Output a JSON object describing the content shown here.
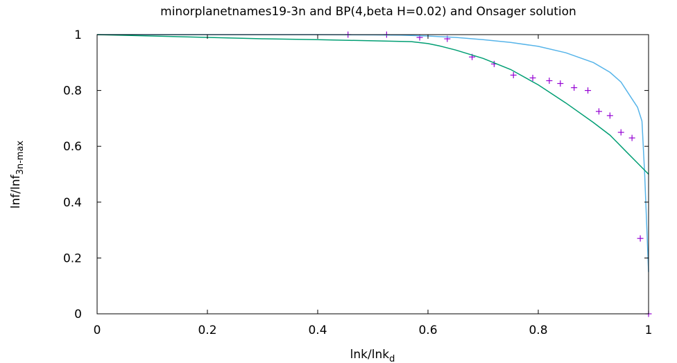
{
  "chart_data": {
    "type": "line",
    "title": "minorplanetnames19-3n and BP(4,beta H=0.02) and Onsager solution",
    "xlabel": "lnk/lnk",
    "xlabel_sub": "d",
    "ylabel": "lnf/lnf",
    "ylabel_sub": "3n-max",
    "xlim": [
      0,
      1
    ],
    "ylim": [
      0,
      1
    ],
    "xticks": [
      0,
      0.2,
      0.4,
      0.6,
      0.8,
      1
    ],
    "xtick_labels": [
      "0",
      "0.2",
      "0.4",
      "0.6",
      "0.8",
      "1"
    ],
    "yticks": [
      0,
      0.2,
      0.4,
      0.6,
      0.8,
      1
    ],
    "ytick_labels": [
      "0",
      "0.2",
      "0.4",
      "0.6",
      "0.8",
      "1"
    ],
    "grid": false,
    "series": [
      {
        "style": "points",
        "marker": "plus",
        "color": "#9400d3",
        "x": [
          0.455,
          0.525,
          0.585,
          0.635,
          0.68,
          0.72,
          0.755,
          0.79,
          0.82,
          0.84,
          0.865,
          0.89,
          0.91,
          0.93,
          0.95,
          0.97,
          0.985,
          1.0
        ],
        "y": [
          1.0,
          1.0,
          0.99,
          0.985,
          0.92,
          0.895,
          0.855,
          0.845,
          0.835,
          0.825,
          0.81,
          0.8,
          0.725,
          0.71,
          0.65,
          0.63,
          0.27,
          0.0
        ]
      },
      {
        "style": "line",
        "color": "#56b4e9",
        "x": [
          0,
          0.1,
          0.2,
          0.3,
          0.4,
          0.5,
          0.55,
          0.6,
          0.65,
          0.7,
          0.75,
          0.8,
          0.85,
          0.9,
          0.93,
          0.95,
          0.97,
          0.98,
          0.988,
          0.993,
          1.0
        ],
        "y": [
          1.0,
          1.0,
          1.0,
          1.0,
          1.0,
          0.999,
          0.998,
          0.995,
          0.99,
          0.982,
          0.972,
          0.958,
          0.935,
          0.9,
          0.865,
          0.83,
          0.77,
          0.74,
          0.69,
          0.5,
          0.15
        ]
      },
      {
        "style": "line",
        "color": "#009e73",
        "x": [
          0,
          0.1,
          0.2,
          0.3,
          0.4,
          0.5,
          0.57,
          0.6,
          0.62,
          0.65,
          0.7,
          0.75,
          0.8,
          0.85,
          0.9,
          0.93,
          0.94,
          0.96,
          0.98,
          1.0
        ],
        "y": [
          1.0,
          0.995,
          0.99,
          0.985,
          0.982,
          0.978,
          0.975,
          0.968,
          0.96,
          0.945,
          0.915,
          0.875,
          0.82,
          0.755,
          0.685,
          0.64,
          0.62,
          0.58,
          0.54,
          0.5
        ]
      }
    ]
  }
}
